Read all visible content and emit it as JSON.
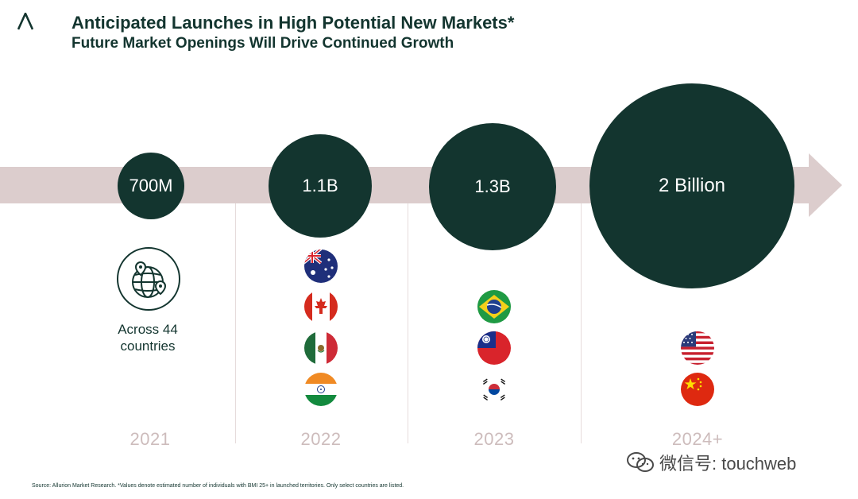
{
  "header": {
    "title": "Anticipated Launches in High Potential New Markets*",
    "subtitle": "Future Market Openings Will Drive Continued Growth",
    "logo_icon": "allurion-a-logo"
  },
  "timeline": [
    {
      "year": "2021",
      "bubble": "700M",
      "caption_line1": "Across 44",
      "caption_line2": "countries",
      "icon": "globe-pin-icon"
    },
    {
      "year": "2022",
      "bubble": "1.1B",
      "flags": [
        "australia-flag",
        "canada-flag",
        "mexico-flag",
        "india-flag"
      ]
    },
    {
      "year": "2023",
      "bubble": "1.3B",
      "flags": [
        "brazil-flag",
        "taiwan-flag",
        "south-korea-flag"
      ]
    },
    {
      "year": "2024+",
      "bubble": "2 Billion",
      "flags": [
        "usa-flag",
        "china-flag"
      ]
    }
  ],
  "footnote": "Source: Allurion Market Research. *Values denote estimated number of individuals with BMI 25+ in launched territories. Only select countries are listed.",
  "watermark": "微信号: touchweb",
  "colors": {
    "primary": "#13352f",
    "arrow": "#dccdcd",
    "year": "#cdbcbc"
  }
}
